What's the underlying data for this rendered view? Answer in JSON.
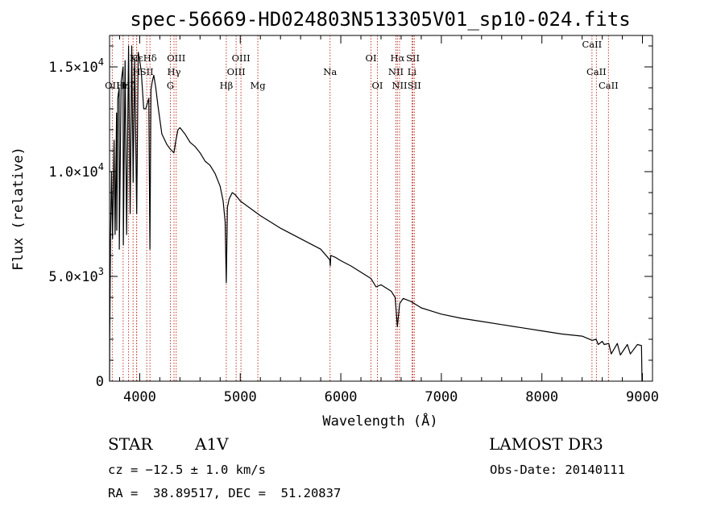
{
  "chart_data": {
    "type": "line",
    "title": "spec-56669-HD024803N513305V01_sp10-024.fits",
    "xlabel": "Wavelength (Å)",
    "ylabel": "Flux (relative)",
    "xlim": [
      3700,
      9100
    ],
    "ylim": [
      0,
      16500
    ],
    "x_ticks": [
      4000,
      5000,
      6000,
      7000,
      8000,
      9000
    ],
    "x_tick_labels": [
      "4000",
      "5000",
      "6000",
      "7000",
      "8000",
      "9000"
    ],
    "y_ticks": [
      0,
      5000,
      10000,
      15000
    ],
    "y_tick_labels": [
      {
        "mantissa": "0",
        "exp": ""
      },
      {
        "mantissa": "5.0×10",
        "exp": "3"
      },
      {
        "mantissa": "1.0×10",
        "exp": "4"
      },
      {
        "mantissa": "1.5×10",
        "exp": "4"
      }
    ],
    "series": [
      {
        "name": "flux",
        "color": "#000000",
        "x": [
          3700,
          3702,
          3710,
          3720,
          3730,
          3745,
          3755,
          3770,
          3772,
          3782,
          3795,
          3797,
          3815,
          3835,
          3837,
          3855,
          3870,
          3889,
          3905,
          3920,
          3935,
          3950,
          3970,
          3985,
          4000,
          4015,
          4040,
          4060,
          4090,
          4101,
          4112,
          4125,
          4140,
          4160,
          4180,
          4200,
          4220,
          4240,
          4270,
          4300,
          4320,
          4340,
          4360,
          4380,
          4400,
          4450,
          4500,
          4550,
          4600,
          4650,
          4700,
          4750,
          4800,
          4830,
          4850,
          4861,
          4872,
          4890,
          4920,
          4950,
          5000,
          5100,
          5200,
          5300,
          5400,
          5500,
          5600,
          5700,
          5800,
          5890,
          5895,
          5900,
          5950,
          6000,
          6100,
          6200,
          6300,
          6350,
          6400,
          6500,
          6540,
          6563,
          6585,
          6620,
          6700,
          6800,
          6900,
          7000,
          7200,
          7400,
          7600,
          7800,
          8000,
          8200,
          8400,
          8500,
          8540,
          8560,
          8600,
          8620,
          8665,
          8690,
          8750,
          8780,
          8850,
          8880,
          8950,
          8990,
          8996,
          9000
        ],
        "y": [
          0,
          2000,
          7000,
          10000,
          6800,
          11500,
          7000,
          12800,
          7200,
          13500,
          14000,
          6300,
          14300,
          15000,
          6500,
          15300,
          7000,
          16000,
          8000,
          16000,
          9500,
          15400,
          8000,
          15700,
          15300,
          14800,
          13000,
          13000,
          13500,
          6300,
          13900,
          14300,
          14600,
          14000,
          13200,
          12500,
          11800,
          11600,
          11300,
          11100,
          11000,
          10900,
          11500,
          12000,
          12100,
          11800,
          11400,
          11200,
          10900,
          10500,
          10300,
          9900,
          9300,
          8600,
          7600,
          4700,
          8300,
          8700,
          9000,
          8900,
          8600,
          8250,
          7900,
          7600,
          7300,
          7050,
          6800,
          6550,
          6300,
          5800,
          5500,
          6000,
          5900,
          5750,
          5500,
          5200,
          4900,
          4500,
          4600,
          4300,
          4000,
          2600,
          3700,
          3950,
          3800,
          3500,
          3350,
          3200,
          3000,
          2850,
          2700,
          2550,
          2400,
          2250,
          2150,
          1950,
          2000,
          1750,
          1900,
          1750,
          1800,
          1300,
          1800,
          1250,
          1750,
          1300,
          1750,
          1700,
          0,
          0
        ]
      }
    ],
    "spectral_lines": [
      {
        "label": "Hε",
        "wl": 3970,
        "row": 1
      },
      {
        "label": "H",
        "wl": 3968,
        "row": 2
      },
      {
        "label": "K",
        "wl": 3934,
        "row": 1
      },
      {
        "label": "Hδ",
        "wl": 4102,
        "row": 1
      },
      {
        "label": "OII",
        "wl": 3727,
        "row": 3
      },
      {
        "label": "Hη",
        "wl": 3835,
        "row": 3
      },
      {
        "label": "Hζ",
        "wl": 3889,
        "row": 3
      },
      {
        "label": "SII",
        "wl": 4070,
        "row": 2
      },
      {
        "label": "OIII",
        "wl": 4363,
        "row": 1
      },
      {
        "label": "Hγ",
        "wl": 4341,
        "row": 2
      },
      {
        "label": "G",
        "wl": 4305,
        "row": 3
      },
      {
        "label": "OIII",
        "wl": 5007,
        "row": 1
      },
      {
        "label": "OIII",
        "wl": 4959,
        "row": 2
      },
      {
        "label": "Hβ",
        "wl": 4861,
        "row": 3
      },
      {
        "label": "Mg",
        "wl": 5175,
        "row": 3
      },
      {
        "label": "Na",
        "wl": 5893,
        "row": 2
      },
      {
        "label": "OI",
        "wl": 6300,
        "row": 1
      },
      {
        "label": "OI",
        "wl": 6364,
        "row": 3
      },
      {
        "label": "Hα",
        "wl": 6563,
        "row": 1
      },
      {
        "label": "NII",
        "wl": 6548,
        "row": 2
      },
      {
        "label": "NII",
        "wl": 6584,
        "row": 3
      },
      {
        "label": "SII",
        "wl": 6717,
        "row": 1
      },
      {
        "label": "Li",
        "wl": 6708,
        "row": 2
      },
      {
        "label": "SII",
        "wl": 6731,
        "row": 3
      },
      {
        "label": "CaII",
        "wl": 8542,
        "row": 2
      },
      {
        "label": "CaII",
        "wl": 8498,
        "row": 0
      },
      {
        "label": "CaII",
        "wl": 8662,
        "row": 3
      }
    ]
  },
  "info": {
    "object_class": "STAR",
    "subclass": "A1V",
    "survey": "LAMOST DR3",
    "cz": "cz = −12.5 ± 1.0 km/s",
    "obs_date": "Obs-Date: 20140111",
    "coords": "RA =  38.89517, DEC =  51.20837"
  }
}
